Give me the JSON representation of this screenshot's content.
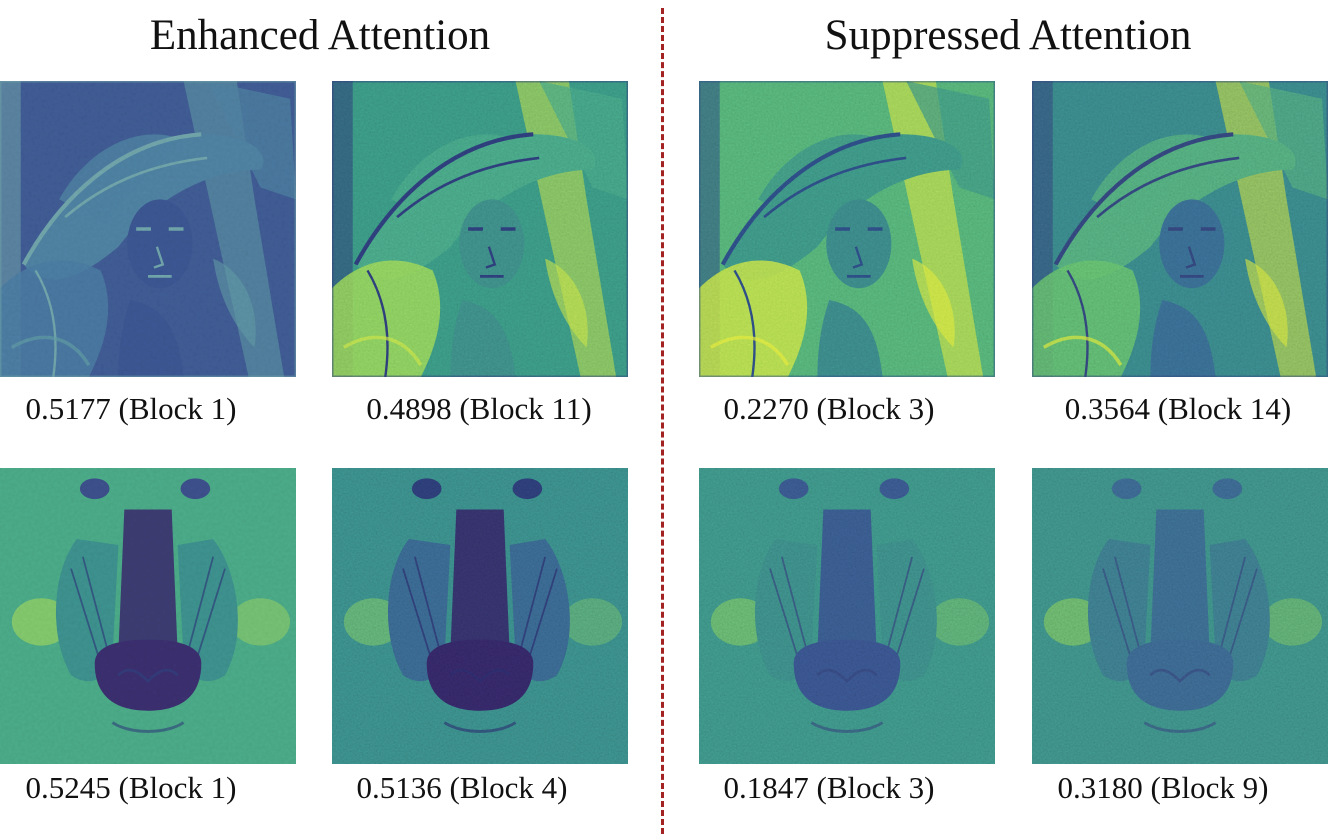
{
  "headings": {
    "left": "Enhanced Attention",
    "right": "Suppressed Attention"
  },
  "colormap": {
    "dark": "#3b4d8c",
    "mid": "#2f8f8c",
    "light": "#7fcf5a",
    "bright": "#dde83a",
    "divider": "#a32222"
  },
  "panels": [
    {
      "id": "p1",
      "subject": "portrait",
      "score": "0.5177",
      "block": "Block 1",
      "caption": "0.5177 (Block 1)",
      "style": "enhanced-smooth"
    },
    {
      "id": "p2",
      "subject": "portrait",
      "score": "0.4898",
      "block": "Block 11",
      "caption": "0.4898 (Block 11)",
      "style": "enhanced-edges"
    },
    {
      "id": "p3",
      "subject": "portrait",
      "score": "0.2270",
      "block": "Block 3",
      "caption": "0.2270 (Block 3)",
      "style": "suppressed-bright"
    },
    {
      "id": "p4",
      "subject": "portrait",
      "score": "0.3564",
      "block": "Block 14",
      "caption": "0.3564 (Block 14)",
      "style": "suppressed-texture"
    },
    {
      "id": "p5",
      "subject": "mandrill",
      "score": "0.5245",
      "block": "Block 1",
      "caption": "0.5245 (Block 1)",
      "style": "enhanced-smooth"
    },
    {
      "id": "p6",
      "subject": "mandrill",
      "score": "0.5136",
      "block": "Block 4",
      "caption": "0.5136 (Block 4)",
      "style": "enhanced-edges"
    },
    {
      "id": "p7",
      "subject": "mandrill",
      "score": "0.1847",
      "block": "Block 3",
      "caption": "0.1847 (Block 3)",
      "style": "suppressed-bright"
    },
    {
      "id": "p8",
      "subject": "mandrill",
      "score": "0.3180",
      "block": "Block 9",
      "caption": "0.3180 (Block 9)",
      "style": "suppressed-texture"
    }
  ]
}
